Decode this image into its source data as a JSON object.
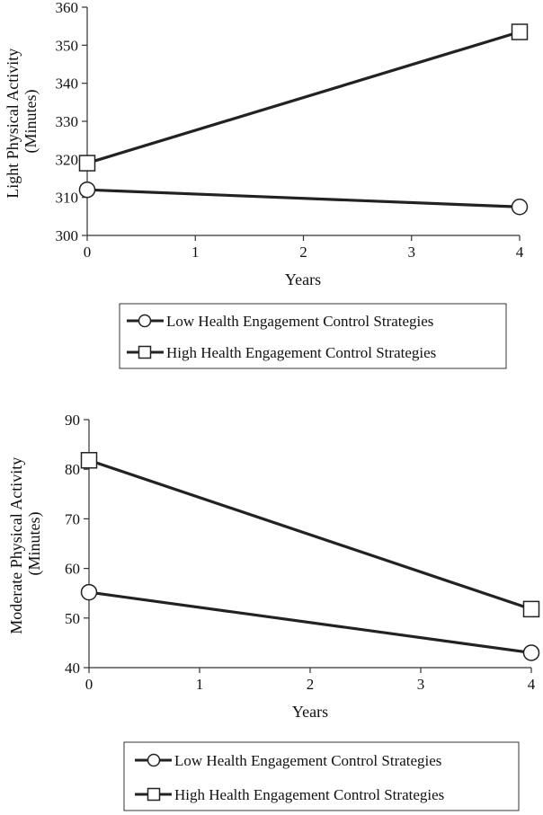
{
  "chart_data": [
    {
      "type": "line",
      "xlabel": "Years",
      "ylabel_line1": "Light Physical Activity",
      "ylabel_line2": "(Minutes)",
      "ylim": [
        300,
        360
      ],
      "yticks": [
        300,
        310,
        320,
        330,
        340,
        350,
        360
      ],
      "xlim": [
        0,
        4
      ],
      "xticks": [
        0,
        1,
        2,
        3,
        4
      ],
      "grid": false,
      "legend_placement": "bottom",
      "series": [
        {
          "name": "Low Health Engagement Control Strategies",
          "marker": "circle",
          "x": [
            0,
            4
          ],
          "y": [
            312,
            307.5
          ]
        },
        {
          "name": "High Health Engagement Control Strategies",
          "marker": "square",
          "x": [
            0,
            4
          ],
          "y": [
            319,
            353.5
          ]
        }
      ]
    },
    {
      "type": "line",
      "xlabel": "Years",
      "ylabel_line1": "Moderate Physical Activity",
      "ylabel_line2": "(Minutes)",
      "ylim": [
        40,
        90
      ],
      "yticks": [
        40,
        50,
        60,
        70,
        80,
        90
      ],
      "xlim": [
        0,
        4
      ],
      "xticks": [
        0,
        1,
        2,
        3,
        4
      ],
      "grid": false,
      "legend_placement": "bottom",
      "series": [
        {
          "name": "Low Health Engagement Control Strategies",
          "marker": "circle",
          "x": [
            0,
            4
          ],
          "y": [
            55.2,
            43
          ]
        },
        {
          "name": "High Health Engagement Control Strategies",
          "marker": "square",
          "x": [
            0,
            4
          ],
          "y": [
            81.8,
            51.8
          ]
        }
      ]
    }
  ]
}
